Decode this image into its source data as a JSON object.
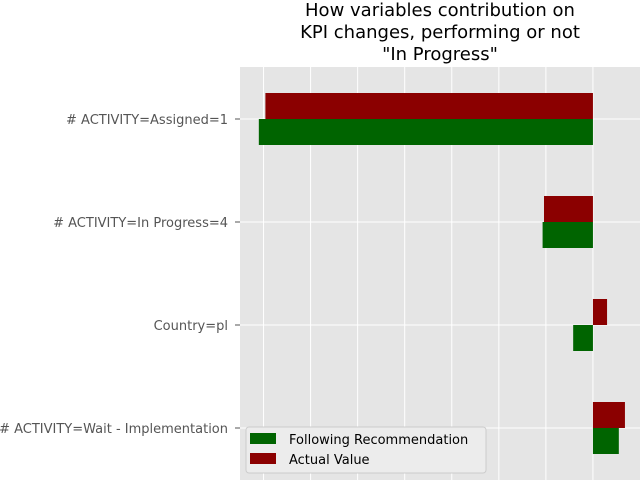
{
  "chart_data": {
    "type": "bar",
    "orientation": "horizontal",
    "title_lines": [
      "How variables contribution on",
      "KPI changes, performing or not",
      "\"In Progress\""
    ],
    "categories": [
      "# ACTIVITY=Assigned=1",
      "# ACTIVITY=In Progress=4",
      "Country=pl",
      "# ACTIVITY=Wait - Implementation"
    ],
    "series": [
      {
        "name": "Following Recommendation",
        "color": "#006400",
        "values": [
          -0.71,
          -0.107,
          -0.042,
          0.055
        ]
      },
      {
        "name": "Actual Value",
        "color": "#8b0000",
        "values": [
          -0.696,
          -0.104,
          0.03,
          0.068
        ]
      }
    ],
    "xlim": [
      -0.75,
      0.1
    ],
    "grid": true,
    "legend_position": "lower-left"
  }
}
